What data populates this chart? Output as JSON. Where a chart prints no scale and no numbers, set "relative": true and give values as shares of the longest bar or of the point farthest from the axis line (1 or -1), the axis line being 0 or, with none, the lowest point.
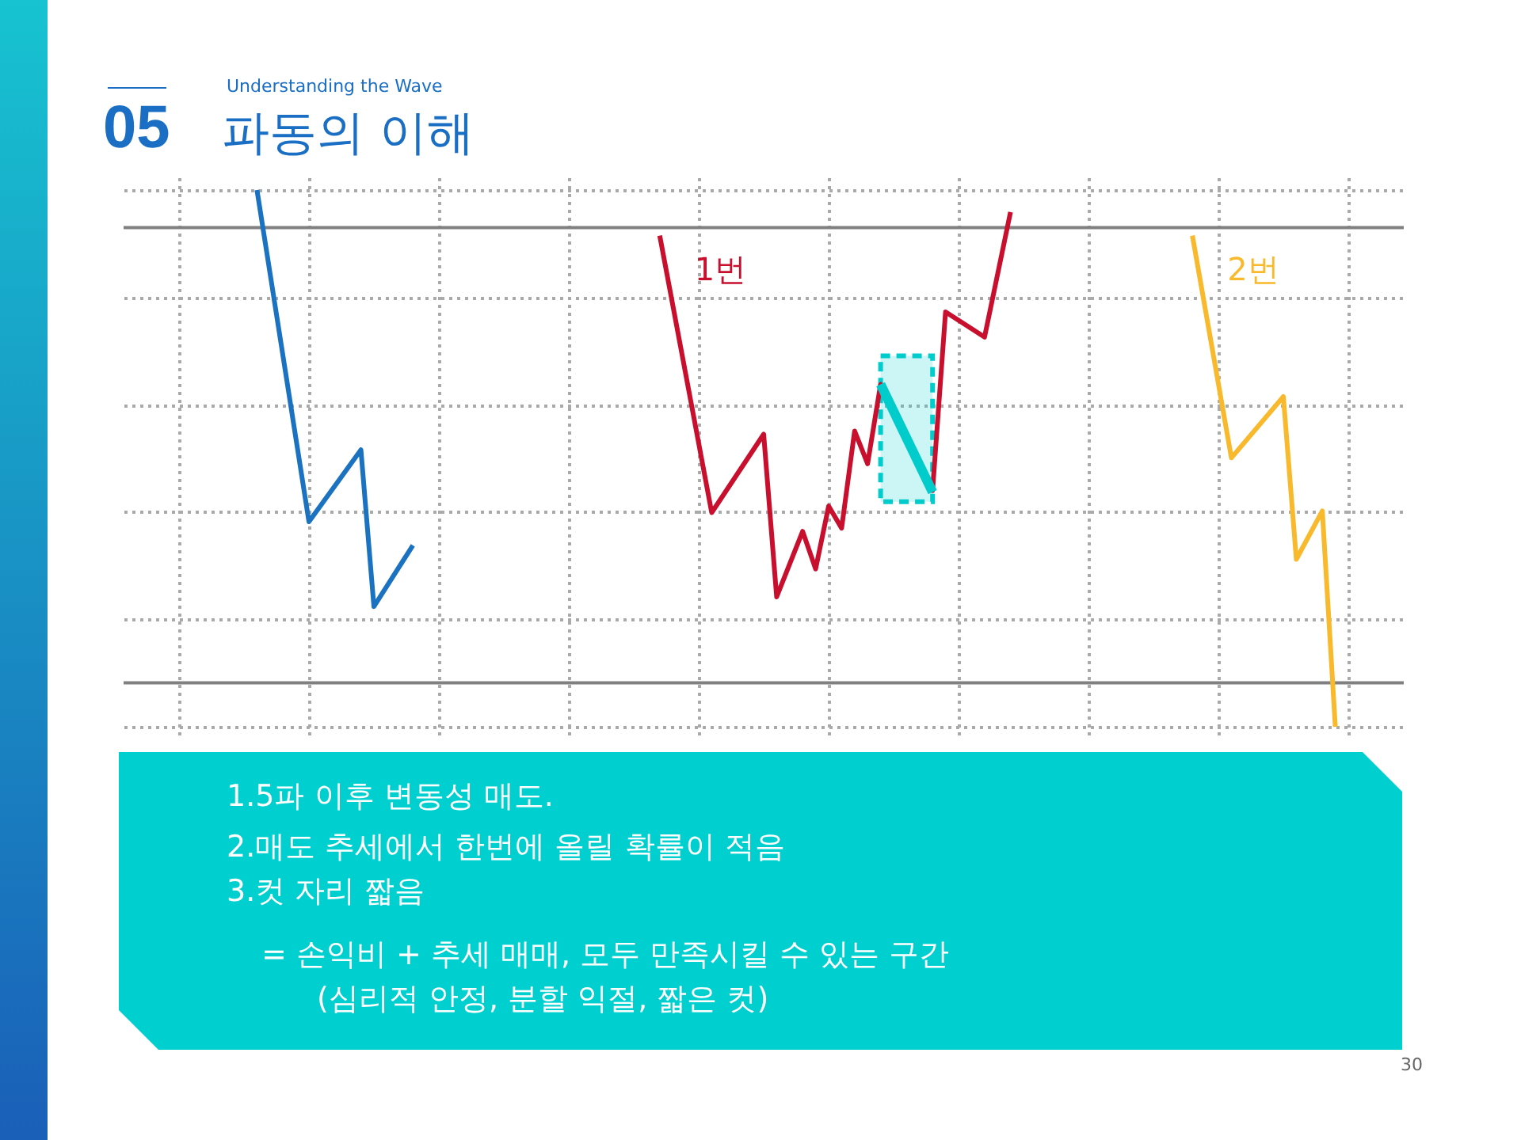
{
  "chart_data": {
    "type": "line",
    "title": "파동의 이해",
    "subtitle": "Understanding the Wave",
    "relative": true,
    "grid": true,
    "tick_labels": false,
    "categories": [
      null,
      null,
      null,
      null,
      null,
      null,
      null,
      null,
      null,
      null,
      null,
      null,
      null,
      null,
      null,
      null,
      null,
      null,
      null,
      null,
      null,
      null,
      null,
      null,
      null,
      null,
      null,
      null,
      null,
      null,
      null,
      null,
      null,
      null,
      null,
      null,
      null,
      null,
      null,
      null,
      null,
      null,
      null,
      null,
      null,
      null,
      null,
      null,
      null,
      null,
      null,
      null,
      null,
      null,
      null,
      null,
      null,
      null,
      null,
      null,
      null,
      null,
      null,
      null,
      null,
      null,
      null,
      null,
      null,
      null,
      null,
      null,
      null,
      null,
      null,
      null,
      null,
      null,
      null,
      null,
      null,
      null,
      null,
      null,
      null,
      null,
      null,
      null,
      null,
      null,
      null
    ],
    "series": [
      {
        "color": "#1a72c0",
        "values": [
          null,
          null,
          null,
          null,
          null,
          null,
          1,
          null,
          null,
          null,
          0.382,
          null,
          null,
          null,
          0.516,
          0.224,
          null,
          null,
          0.338,
          null,
          null,
          null,
          null,
          null,
          null,
          null,
          null,
          null,
          null,
          null,
          null,
          null,
          null,
          null,
          null,
          null,
          null,
          null,
          null,
          null,
          null,
          null,
          null,
          null,
          null,
          null,
          null,
          null,
          null,
          null,
          null,
          null,
          null,
          null,
          null,
          null,
          null,
          null,
          null,
          null,
          null,
          null,
          null,
          null,
          null,
          null,
          null,
          null,
          null,
          null,
          null,
          null,
          null,
          null,
          null,
          null,
          null,
          null,
          null,
          null,
          null,
          null,
          null,
          null,
          null,
          null,
          null,
          null,
          null,
          null,
          null
        ]
      },
      {
        "name": "1번",
        "color": "#c8102e",
        "values": [
          null,
          null,
          null,
          null,
          null,
          null,
          null,
          null,
          null,
          null,
          null,
          null,
          null,
          null,
          null,
          null,
          null,
          null,
          null,
          null,
          null,
          null,
          null,
          null,
          null,
          null,
          null,
          null,
          null,
          null,
          null,
          null,
          null,
          null,
          null,
          null,
          null,
          0.915,
          null,
          null,
          null,
          0.399,
          null,
          null,
          null,
          0.545,
          0.242,
          null,
          0.364,
          0.294,
          0.411,
          0.37,
          0.551,
          0.49,
          0.638,
          null,
          null,
          null,
          0.44,
          0.773,
          null,
          null,
          0.726,
          null,
          0.959,
          null,
          null,
          null,
          null,
          null,
          null,
          null,
          null,
          null,
          null,
          null,
          null,
          null,
          null,
          null,
          null,
          null,
          null,
          null,
          null,
          null,
          null,
          null,
          null,
          null,
          null
        ]
      },
      {
        "color": "#00cccc",
        "values": [
          null,
          null,
          null,
          null,
          null,
          null,
          null,
          null,
          null,
          null,
          null,
          null,
          null,
          null,
          null,
          null,
          null,
          null,
          null,
          null,
          null,
          null,
          null,
          null,
          null,
          null,
          null,
          null,
          null,
          null,
          null,
          null,
          null,
          null,
          null,
          null,
          null,
          null,
          null,
          null,
          null,
          null,
          null,
          null,
          null,
          null,
          null,
          null,
          null,
          null,
          null,
          null,
          null,
          null,
          0.638,
          null,
          null,
          null,
          0.437,
          null,
          null,
          null,
          null,
          null,
          null,
          null,
          null,
          null,
          null,
          null,
          null,
          null,
          null,
          null,
          null,
          null,
          null,
          null,
          null,
          null,
          null,
          null,
          null,
          null,
          null,
          null,
          null,
          null,
          null,
          null,
          null
        ]
      },
      {
        "name": "2번",
        "color": "#f9b92d",
        "values": [
          null,
          null,
          null,
          null,
          null,
          null,
          null,
          null,
          null,
          null,
          null,
          null,
          null,
          null,
          null,
          null,
          null,
          null,
          null,
          null,
          null,
          null,
          null,
          null,
          null,
          null,
          null,
          null,
          null,
          null,
          null,
          null,
          null,
          null,
          null,
          null,
          null,
          null,
          null,
          null,
          null,
          null,
          null,
          null,
          null,
          null,
          null,
          null,
          null,
          null,
          null,
          null,
          null,
          null,
          null,
          null,
          null,
          null,
          null,
          null,
          null,
          null,
          null,
          null,
          null,
          null,
          null,
          null,
          null,
          null,
          null,
          null,
          null,
          null,
          null,
          null,
          null,
          null,
          0.915,
          null,
          null,
          0.501,
          null,
          null,
          null,
          0.615,
          0.312,
          null,
          0.402,
          0,
          null
        ]
      }
    ],
    "ref_lines": [
      {
        "axis": "y",
        "value": 0.93,
        "color": "#808080"
      },
      {
        "axis": "y",
        "value": 0.082,
        "color": "#808080"
      }
    ],
    "annotations": [
      "05",
      "1.5파 이후  변동성 매도.",
      "2.매도 추세에서 한번에 올릴 확률이 적음",
      "3.컷 자리 짧음",
      "= 손익비 + 추세 매매, 모두 만족시킬 수 있는 구간",
      "(심리적 안정, 분할 익절, 짧은 컷)",
      "30"
    ]
  }
}
